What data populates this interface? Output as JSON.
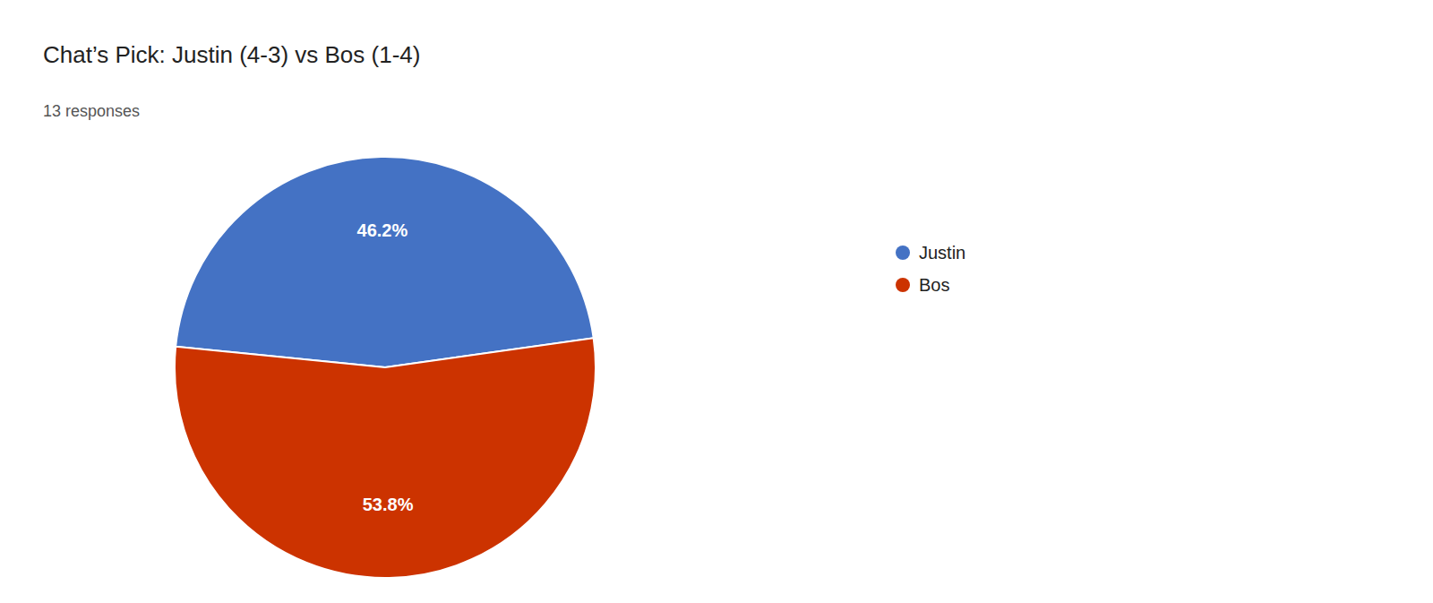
{
  "chart_data": {
    "type": "pie",
    "title": "Chat’s Pick: Justin (4-3) vs Bos (1-4)",
    "subtitle": "13 responses",
    "categories": [
      "Justin",
      "Bos"
    ],
    "values": [
      46.2,
      53.8
    ],
    "value_labels": [
      "46.2%",
      "53.8%"
    ],
    "colors": [
      "#4472C4",
      "#CC3300"
    ],
    "data_labels": true,
    "legend": "right"
  }
}
